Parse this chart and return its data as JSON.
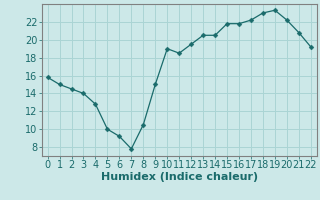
{
  "x": [
    0,
    1,
    2,
    3,
    4,
    5,
    6,
    7,
    8,
    9,
    10,
    11,
    12,
    13,
    14,
    15,
    16,
    17,
    18,
    19,
    20,
    21,
    22
  ],
  "y": [
    15.8,
    15.0,
    14.5,
    14.0,
    12.8,
    10.0,
    9.2,
    7.8,
    10.5,
    15.0,
    19.0,
    18.5,
    19.5,
    20.5,
    20.5,
    21.8,
    21.8,
    22.2,
    23.0,
    23.3,
    22.2,
    20.8,
    19.2
  ],
  "line_color": "#1a6b6b",
  "marker": "D",
  "marker_size": 2.5,
  "bg_color": "#cce8e8",
  "grid_color": "#aad4d4",
  "tick_color": "#1a6b6b",
  "spine_color": "#808080",
  "xlabel": "Humidex (Indice chaleur)",
  "xlabel_fontsize": 8,
  "tick_fontsize": 7,
  "ylim": [
    7,
    24
  ],
  "xlim": [
    -0.5,
    22.5
  ],
  "yticks": [
    8,
    10,
    12,
    14,
    16,
    18,
    20,
    22
  ],
  "xticks": [
    0,
    1,
    2,
    3,
    4,
    5,
    6,
    7,
    8,
    9,
    10,
    11,
    12,
    13,
    14,
    15,
    16,
    17,
    18,
    19,
    20,
    21,
    22
  ]
}
